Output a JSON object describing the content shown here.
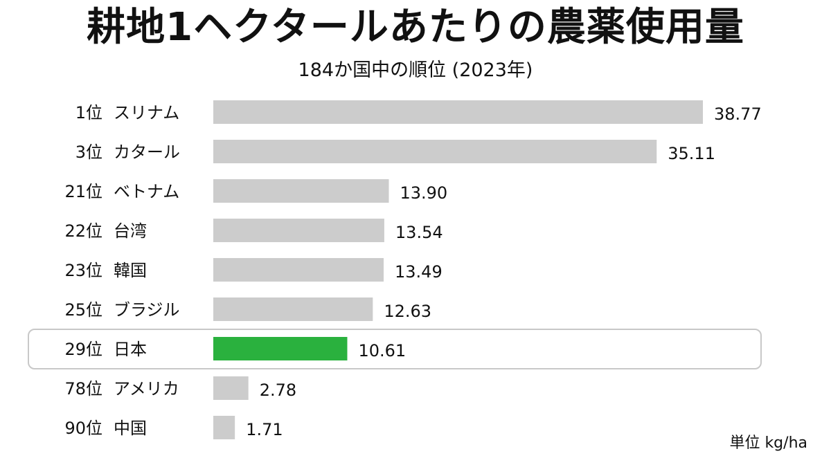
{
  "title": "耕地1ヘクタールあたりの農薬使用量",
  "subtitle": "184か国中の順位 (2023年)",
  "unit_label": "単位 kg/ha",
  "colors": {
    "bar": "#cccccc",
    "highlight": "#2ab13e",
    "highlight_box": "#c8c8c8",
    "text": "#111111"
  },
  "chart_data": {
    "type": "bar",
    "orientation": "horizontal",
    "categories": [
      "1位 スリナム",
      "3位 カタール",
      "21位 ベトナム",
      "22位 台湾",
      "23位 韓国",
      "25位 ブラジル",
      "29位 日本",
      "78位 アメリカ",
      "90位 中国"
    ],
    "ranks": [
      "1位",
      "3位",
      "21位",
      "22位",
      "23位",
      "25位",
      "29位",
      "78位",
      "90位"
    ],
    "countries": [
      "スリナム",
      "カタール",
      "ベトナム",
      "台湾",
      "韓国",
      "ブラジル",
      "日本",
      "アメリカ",
      "中国"
    ],
    "values": [
      38.77,
      35.11,
      13.9,
      13.54,
      13.49,
      12.63,
      10.61,
      2.78,
      1.71
    ],
    "value_labels": [
      "38.77",
      "35.11",
      "13.90",
      "13.54",
      "13.49",
      "12.63",
      "10.61",
      "2.78",
      "1.71"
    ],
    "highlight_index": 6,
    "xlim": [
      0,
      38.77
    ],
    "grid": false,
    "legend": "none"
  }
}
